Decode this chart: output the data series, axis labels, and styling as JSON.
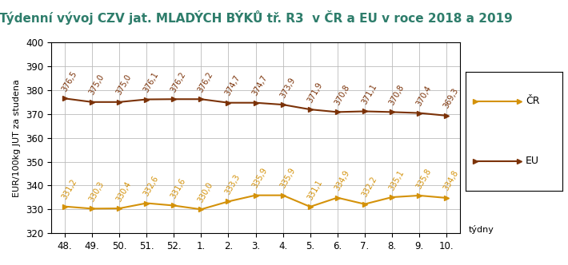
{
  "title": "Týdenní vývoj CZV jat. MLADÝCH BÝKŮ tř. R3  v ČR a EU v roce 2018 a 2019",
  "year_label": "2019",
  "ylabel": "EUR/100kg JUT za studena",
  "x_labels": [
    "48.",
    "49.",
    "50.",
    "51.",
    "52.",
    "1.",
    "2.",
    "3.",
    "4.",
    "5.",
    "6.",
    "7.",
    "8.",
    "9.",
    "10."
  ],
  "cr_values": [
    331.2,
    330.3,
    330.4,
    332.6,
    331.6,
    330.0,
    333.3,
    335.9,
    335.9,
    331.1,
    334.9,
    332.2,
    335.1,
    335.8,
    334.8
  ],
  "eu_values": [
    376.5,
    375.0,
    375.0,
    376.1,
    376.2,
    376.2,
    374.7,
    374.7,
    373.9,
    371.9,
    370.8,
    371.1,
    370.8,
    370.4,
    369.3
  ],
  "cr_color": "#D4920A",
  "eu_color": "#7B3208",
  "cr_label": "ČR",
  "eu_label": "EU",
  "ylim": [
    320,
    400
  ],
  "yticks": [
    320,
    330,
    340,
    350,
    360,
    370,
    380,
    390,
    400
  ],
  "grid_color": "#BBBBBB",
  "tidny_label": "týdny",
  "title_color": "#2E7D6B",
  "title_fontsize": 11,
  "axis_label_fontsize": 8,
  "tick_fontsize": 8.5,
  "data_label_fontsize": 7,
  "legend_fontsize": 9
}
